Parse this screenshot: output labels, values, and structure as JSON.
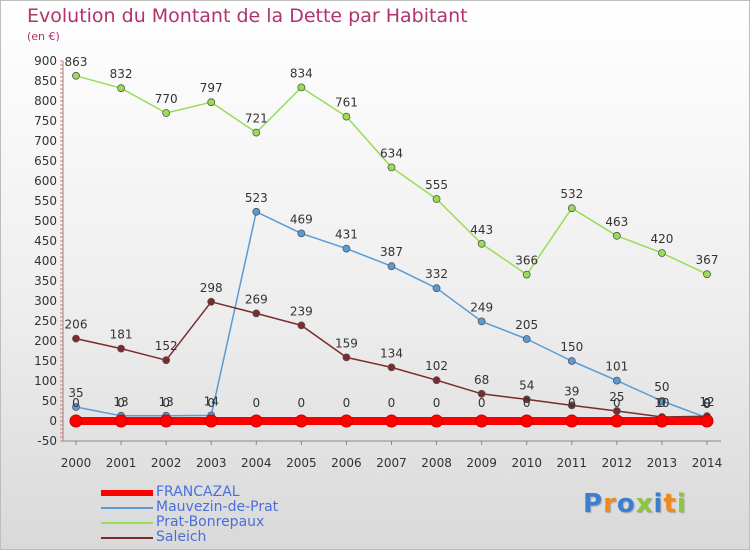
{
  "title": "Evolution du Montant de la Dette par Habitant",
  "subtitle": "(en €)",
  "logo": {
    "text": "Proxiti",
    "colors": [
      "#3b7fd0",
      "#f08a1c",
      "#3b7fd0",
      "#8cc63f",
      "#3b7fd0",
      "#f08a1c",
      "#8cc63f"
    ]
  },
  "chart_data": {
    "type": "line",
    "x": [
      2000,
      2001,
      2002,
      2003,
      2004,
      2005,
      2006,
      2007,
      2008,
      2009,
      2010,
      2011,
      2012,
      2013,
      2014
    ],
    "ylim": [
      -50,
      900
    ],
    "yticks": [
      -50,
      0,
      50,
      100,
      150,
      200,
      250,
      300,
      350,
      400,
      450,
      500,
      550,
      600,
      650,
      700,
      750,
      800,
      850,
      900
    ],
    "grid": false,
    "legend_position": "bottom-left",
    "series": [
      {
        "name": "FRANCAZAL",
        "color": "#ff0000",
        "values": [
          0,
          0,
          0,
          0,
          0,
          0,
          0,
          0,
          0,
          0,
          0,
          0,
          0,
          0,
          0
        ],
        "labels": [
          "0",
          "0",
          "0",
          "0",
          "0",
          "0",
          "0",
          "0",
          "0",
          "0",
          "0",
          "0",
          "0",
          "0",
          "0"
        ]
      },
      {
        "name": "Mauvezin-de-Prat",
        "color": "#5b9bd5",
        "values": [
          35,
          13,
          13,
          14,
          523,
          469,
          431,
          387,
          332,
          249,
          205,
          150,
          101,
          50,
          8
        ],
        "labels": [
          "35",
          "13",
          "13",
          "14",
          "523",
          "469",
          "431",
          "387",
          "332",
          "249",
          "205",
          "150",
          "101",
          "50",
          "8"
        ]
      },
      {
        "name": "Prat-Bonrepaux",
        "color": "#99dd55",
        "values": [
          863,
          832,
          770,
          797,
          721,
          834,
          761,
          634,
          555,
          443,
          366,
          532,
          463,
          420,
          367
        ],
        "labels": [
          "863",
          "832",
          "770",
          "797",
          "721",
          "834",
          "761",
          "634",
          "555",
          "443",
          "366",
          "532",
          "463",
          "420",
          "367"
        ]
      },
      {
        "name": "Saleich",
        "color": "#7b2b2b",
        "values": [
          206,
          181,
          152,
          298,
          269,
          239,
          159,
          134,
          102,
          68,
          54,
          39,
          25,
          10,
          12
        ],
        "labels": [
          "206",
          "181",
          "152",
          "298",
          "269",
          "239",
          "159",
          "134",
          "102",
          "68",
          "54",
          "39",
          "25",
          "10",
          "12"
        ]
      }
    ]
  }
}
